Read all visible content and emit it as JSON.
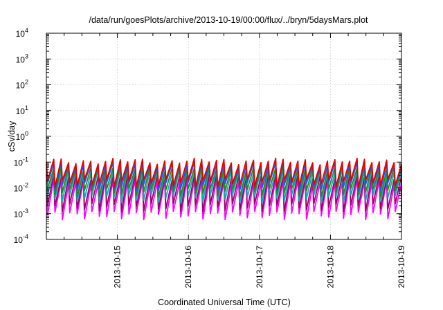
{
  "chart_data": {
    "type": "line",
    "title": "/data/run/goesPlots/archive/2013-10-19/00:00/flux/../bryn/5daysMars.plot",
    "xlabel": "Coordinated Universal Time (UTC)",
    "ylabel": "cSv/day",
    "x_range": [
      "2013-10-14T00:00",
      "2013-10-19T00:00"
    ],
    "x_ticks": [
      "2013-10-15",
      "2013-10-16",
      "2013-10-17",
      "2013-10-18",
      "2013-10-19"
    ],
    "y_scale": "log",
    "ylim": [
      0.0001,
      10000
    ],
    "y_ticks": [
      {
        "base": "10",
        "exp": "-4"
      },
      {
        "base": "10",
        "exp": "-3"
      },
      {
        "base": "10",
        "exp": "-2"
      },
      {
        "base": "10",
        "exp": "-1"
      },
      {
        "base": "10",
        "exp": "0"
      },
      {
        "base": "10",
        "exp": "1"
      },
      {
        "base": "10",
        "exp": "2"
      },
      {
        "base": "10",
        "exp": "3"
      },
      {
        "base": "10",
        "exp": "4"
      }
    ],
    "grid": true,
    "sawtooth": {
      "period_hours": 2.5,
      "drop_hours": 0.4
    },
    "series": [
      {
        "color": "#ff00ff",
        "peak": 0.018,
        "trough": 0.0009
      },
      {
        "color": "#a0006e",
        "peak": 0.028,
        "trough": 0.0018
      },
      {
        "color": "#00b4b4",
        "peak": 0.045,
        "trough": 0.004
      },
      {
        "color": "#1e8c1e",
        "peak": 0.06,
        "trough": 0.007
      },
      {
        "color": "#2850f0",
        "peak": 0.085,
        "trough": 0.012
      },
      {
        "color": "#e60000",
        "peak": 0.11,
        "trough": 0.016
      }
    ]
  }
}
